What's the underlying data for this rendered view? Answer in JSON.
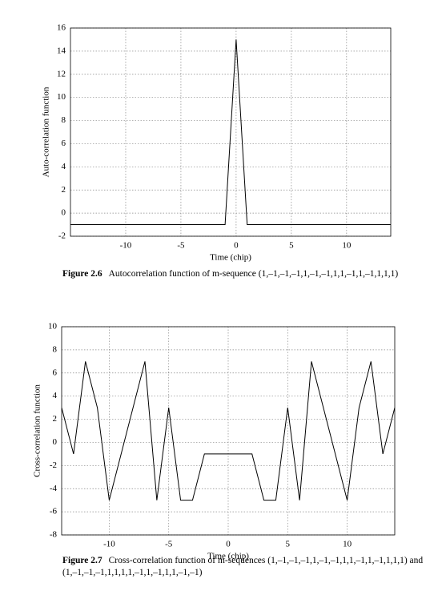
{
  "chart_data": [
    {
      "type": "line",
      "y_label": "Auto-correlation function",
      "x_label": "Time (chip)",
      "figure_label": "Figure 2.6",
      "caption": "Autocorrelation function of m-sequence (1,–1,–1,–1,1,–1,–1,1,1,–1,1,–1,1,1,1)",
      "x": [
        -15,
        -14,
        -13,
        -12,
        -11,
        -10,
        -9,
        -8,
        -7,
        -6,
        -5,
        -4,
        -3,
        -2,
        -1,
        0,
        1,
        2,
        3,
        4,
        5,
        6,
        7,
        8,
        9,
        10,
        11,
        12,
        13,
        14
      ],
      "series": [
        {
          "color": "#000000",
          "values": [
            -1,
            -1,
            -1,
            -1,
            -1,
            -1,
            -1,
            -1,
            -1,
            -1,
            -1,
            -1,
            -1,
            -1,
            -1,
            15,
            -1,
            -1,
            -1,
            -1,
            -1,
            -1,
            -1,
            -1,
            -1,
            -1,
            -1,
            -1,
            -1,
            -1
          ]
        }
      ],
      "xlim": [
        -15,
        14
      ],
      "ylim": [
        -2,
        16
      ],
      "xticks": [
        -10,
        -5,
        0,
        5,
        10
      ],
      "yticks": [
        -2,
        0,
        2,
        4,
        6,
        8,
        10,
        12,
        14,
        16
      ],
      "grid": true
    },
    {
      "type": "line",
      "y_label": "Cross-correlation function",
      "x_label": "Time (chip)",
      "figure_label": "Figure 2.7",
      "caption": "Cross-correlation function of m-sequences (1,–1,–1,–1,1,–1,–1,1,1,–1,1,–1,1,1,1) and (1,–1,–1,–1,1,1,1,1,–1,1,–1,1,1,–1,–1)",
      "x": [
        -14,
        -13,
        -12,
        -11,
        -10,
        -9,
        -8,
        -7,
        -6,
        -5,
        -4,
        -3,
        -2,
        -1,
        0,
        1,
        2,
        3,
        4,
        5,
        6,
        7,
        8,
        9,
        10,
        11,
        12,
        13,
        14
      ],
      "series": [
        {
          "color": "#000000",
          "values": [
            3,
            -1,
            7,
            3,
            -5,
            -1,
            3,
            7,
            -5,
            3,
            -5,
            -5,
            -1,
            -1,
            -1,
            -1,
            -1,
            -5,
            -5,
            3,
            -5,
            7,
            3,
            -1,
            -5,
            3,
            7,
            -1,
            3
          ]
        }
      ],
      "xlim": [
        -14,
        14
      ],
      "ylim": [
        -8,
        10
      ],
      "xticks": [
        -10,
        -5,
        0,
        5,
        10
      ],
      "yticks": [
        -8,
        -6,
        -4,
        -2,
        0,
        2,
        4,
        6,
        8,
        10
      ],
      "grid": true
    }
  ]
}
